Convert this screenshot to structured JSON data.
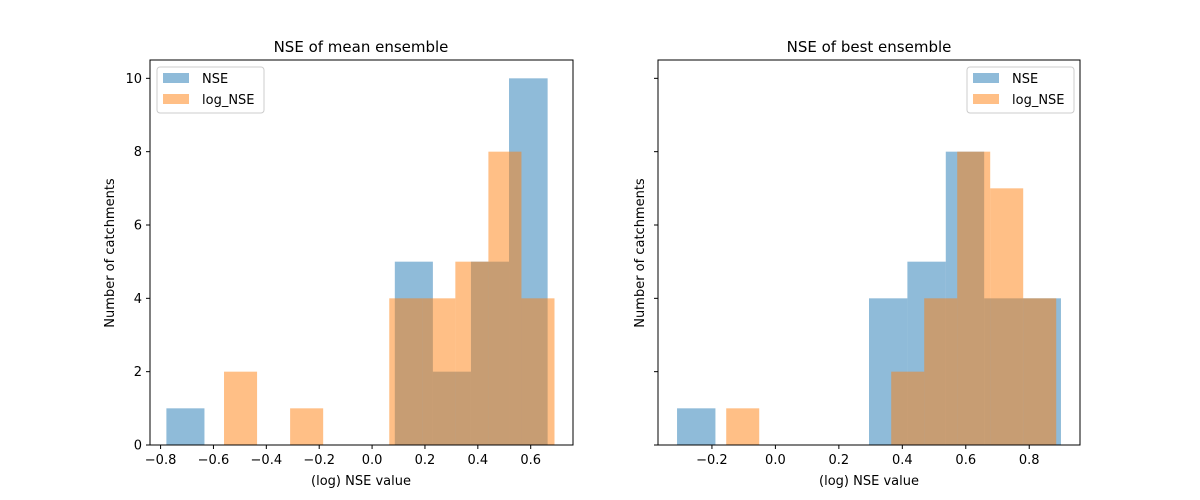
{
  "chart_data": [
    {
      "type": "bar",
      "subtype": "histogram",
      "title": "NSE of mean ensemble",
      "xlabel": "(log) NSE value",
      "ylabel": "Number of catchments",
      "xlim": [
        -0.84,
        0.76
      ],
      "ylim": [
        0,
        10.5
      ],
      "xticks": [
        -0.8,
        -0.6,
        -0.4,
        -0.2,
        0.0,
        0.2,
        0.4,
        0.6
      ],
      "xtick_labels": [
        "−0.8",
        "−0.6",
        "−0.4",
        "−0.2",
        "0.0",
        "0.2",
        "0.4",
        "0.6"
      ],
      "yticks": [
        0,
        2,
        4,
        6,
        8,
        10
      ],
      "ytick_labels": [
        "0",
        "2",
        "4",
        "6",
        "8",
        "10"
      ],
      "legend": {
        "position": "upper-left"
      },
      "series": [
        {
          "name": "NSE",
          "color": "#1f77b4",
          "alpha": 0.5,
          "bins": [
            {
              "x0": -0.778,
              "x1": -0.634,
              "count": 1
            },
            {
              "x0": -0.634,
              "x1": -0.49,
              "count": 0
            },
            {
              "x0": -0.49,
              "x1": -0.346,
              "count": 0
            },
            {
              "x0": -0.346,
              "x1": -0.202,
              "count": 0
            },
            {
              "x0": -0.202,
              "x1": -0.058,
              "count": 0
            },
            {
              "x0": -0.058,
              "x1": 0.086,
              "count": 0
            },
            {
              "x0": 0.086,
              "x1": 0.23,
              "count": 5
            },
            {
              "x0": 0.23,
              "x1": 0.374,
              "count": 2
            },
            {
              "x0": 0.374,
              "x1": 0.518,
              "count": 5
            },
            {
              "x0": 0.518,
              "x1": 0.664,
              "count": 10
            }
          ]
        },
        {
          "name": "log_NSE",
          "color": "#ff7f0e",
          "alpha": 0.5,
          "bins": [
            {
              "x0": -0.56,
              "x1": -0.435,
              "count": 2
            },
            {
              "x0": -0.435,
              "x1": -0.31,
              "count": 0
            },
            {
              "x0": -0.31,
              "x1": -0.185,
              "count": 1
            },
            {
              "x0": -0.185,
              "x1": -0.06,
              "count": 0
            },
            {
              "x0": -0.06,
              "x1": 0.065,
              "count": 0
            },
            {
              "x0": 0.065,
              "x1": 0.19,
              "count": 4
            },
            {
              "x0": 0.19,
              "x1": 0.315,
              "count": 4
            },
            {
              "x0": 0.315,
              "x1": 0.44,
              "count": 5
            },
            {
              "x0": 0.44,
              "x1": 0.565,
              "count": 8
            },
            {
              "x0": 0.565,
              "x1": 0.69,
              "count": 4
            }
          ]
        }
      ]
    },
    {
      "type": "bar",
      "subtype": "histogram",
      "title": "NSE of best ensemble",
      "xlabel": "(log) NSE value",
      "ylabel": "Number of catchments",
      "xlim": [
        -0.37,
        0.96
      ],
      "ylim": [
        0,
        10.5
      ],
      "xticks": [
        -0.2,
        0.0,
        0.2,
        0.4,
        0.6,
        0.8
      ],
      "xtick_labels": [
        "−0.2",
        "0.0",
        "0.2",
        "0.4",
        "0.6",
        "0.8"
      ],
      "yticks": [
        0,
        2,
        4,
        6,
        8,
        10
      ],
      "ytick_labels": [
        "",
        "",
        "",
        "",
        "",
        ""
      ],
      "legend": {
        "position": "upper-right"
      },
      "series": [
        {
          "name": "NSE",
          "color": "#1f77b4",
          "alpha": 0.5,
          "bins": [
            {
              "x0": -0.31,
              "x1": -0.189,
              "count": 1
            },
            {
              "x0": -0.189,
              "x1": -0.068,
              "count": 0
            },
            {
              "x0": -0.068,
              "x1": 0.053,
              "count": 0
            },
            {
              "x0": 0.053,
              "x1": 0.174,
              "count": 0
            },
            {
              "x0": 0.174,
              "x1": 0.295,
              "count": 0
            },
            {
              "x0": 0.295,
              "x1": 0.416,
              "count": 4
            },
            {
              "x0": 0.416,
              "x1": 0.537,
              "count": 5
            },
            {
              "x0": 0.537,
              "x1": 0.658,
              "count": 8
            },
            {
              "x0": 0.658,
              "x1": 0.779,
              "count": 4
            },
            {
              "x0": 0.779,
              "x1": 0.9,
              "count": 4
            }
          ]
        },
        {
          "name": "log_NSE",
          "color": "#ff7f0e",
          "alpha": 0.5,
          "bins": [
            {
              "x0": -0.155,
              "x1": -0.051,
              "count": 1
            },
            {
              "x0": -0.051,
              "x1": 0.053,
              "count": 0
            },
            {
              "x0": 0.053,
              "x1": 0.157,
              "count": 0
            },
            {
              "x0": 0.157,
              "x1": 0.261,
              "count": 0
            },
            {
              "x0": 0.261,
              "x1": 0.365,
              "count": 0
            },
            {
              "x0": 0.365,
              "x1": 0.469,
              "count": 2
            },
            {
              "x0": 0.469,
              "x1": 0.573,
              "count": 4
            },
            {
              "x0": 0.573,
              "x1": 0.677,
              "count": 8
            },
            {
              "x0": 0.677,
              "x1": 0.781,
              "count": 7
            },
            {
              "x0": 0.781,
              "x1": 0.885,
              "count": 4
            }
          ]
        }
      ]
    }
  ]
}
